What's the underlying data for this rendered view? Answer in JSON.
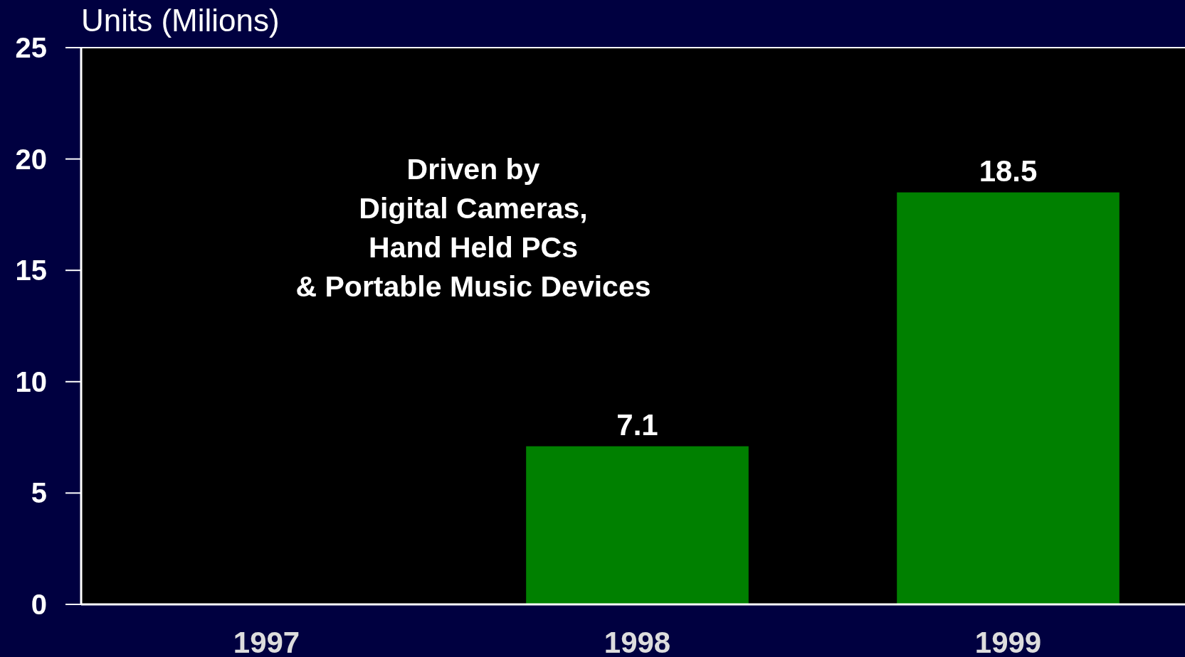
{
  "chart_data": {
    "type": "bar",
    "title": "Units (Milions)",
    "categories": [
      "1997",
      "1998",
      "1999"
    ],
    "values": [
      null,
      7.1,
      18.5
    ],
    "value_labels": [
      null,
      "7.1",
      "18.5"
    ],
    "color": "#008000",
    "ylim": [
      0,
      25
    ],
    "yticks": [
      0,
      5,
      10,
      15,
      20,
      25
    ],
    "annotations": [
      "Driven by\nDigital Cameras,\nHand Held PCs\n& Portable Music Devices"
    ]
  }
}
